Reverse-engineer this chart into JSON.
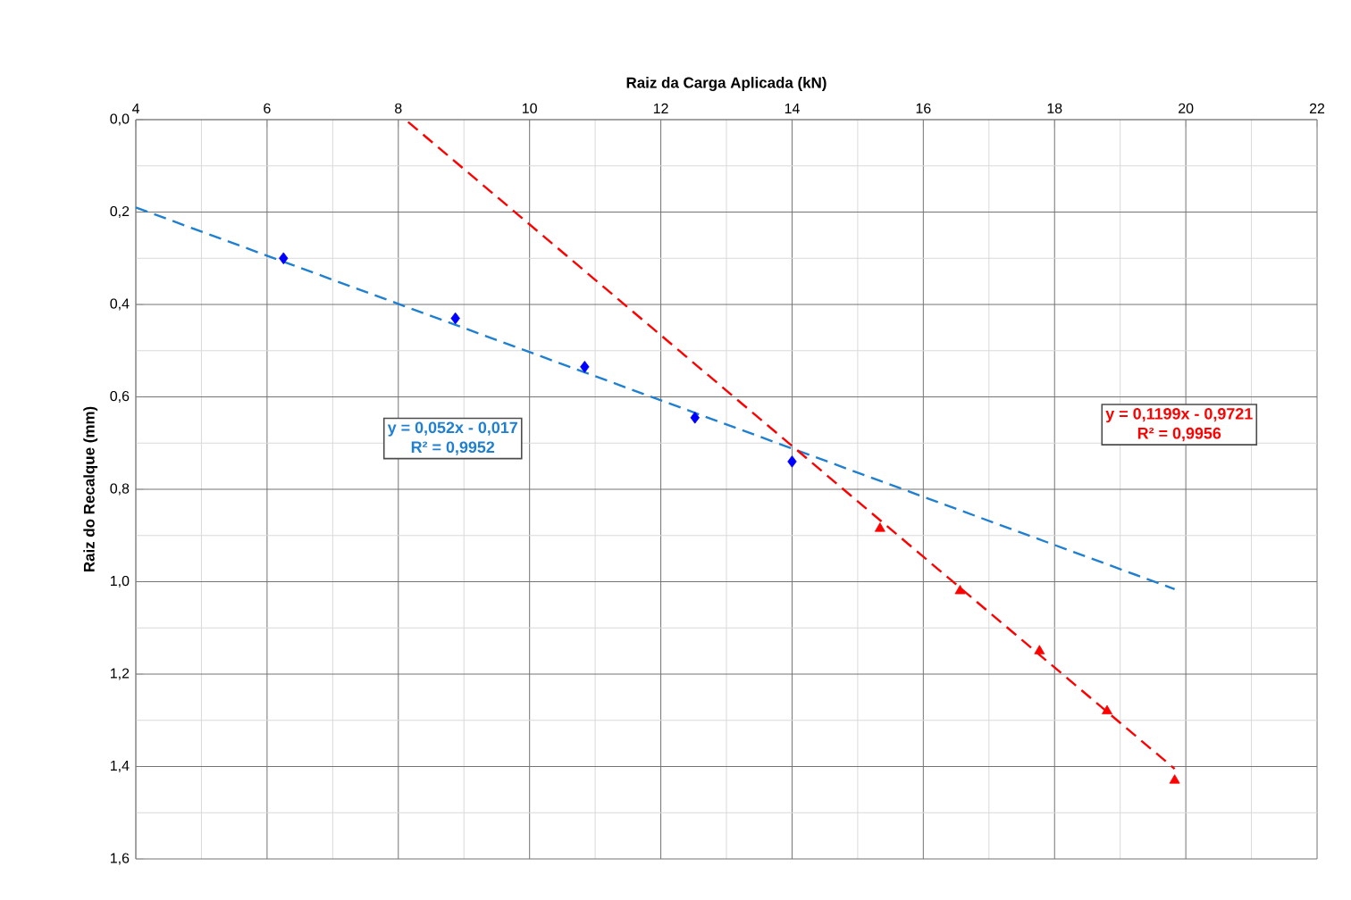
{
  "chart_data": {
    "type": "scatter",
    "xlabel": "Raiz da Carga Aplicada (kN)",
    "ylabel": "Raiz do Recalque (mm)",
    "xlim": [
      4,
      22
    ],
    "ylim": [
      1.6,
      0
    ],
    "xticks": [
      4,
      6,
      8,
      10,
      12,
      14,
      16,
      18,
      20,
      22
    ],
    "yticks": [
      {
        "value": 0,
        "label": "0,0"
      },
      {
        "value": 0.2,
        "label": "0,2"
      },
      {
        "value": 0.4,
        "label": "0,4"
      },
      {
        "value": 0.6,
        "label": "0,6"
      },
      {
        "value": 0.8,
        "label": "0,8"
      },
      {
        "value": 1.0,
        "label": "1,0"
      },
      {
        "value": 1.2,
        "label": "1,2"
      },
      {
        "value": 1.4,
        "label": "1,4"
      },
      {
        "value": 1.6,
        "label": "1,6"
      }
    ],
    "grid": true,
    "series": [
      {
        "color": "#0000ff",
        "marker": "diamond",
        "x": [
          6.25,
          8.87,
          10.84,
          12.52,
          14.0
        ],
        "values": [
          0.3,
          0.43,
          0.535,
          0.645,
          0.74
        ]
      },
      {
        "color": "#ff0000",
        "marker": "triangle",
        "x": [
          15.34,
          16.56,
          17.77,
          18.8,
          19.83
        ],
        "values": [
          0.885,
          1.02,
          1.15,
          1.28,
          1.43
        ]
      },
      {
        "type": "line",
        "color": "#1f7fd0",
        "line_style": "dashed",
        "marker": "none",
        "x": [
          4,
          19.83
        ],
        "values": [
          0.19,
          1.016
        ]
      },
      {
        "type": "line",
        "color": "#ff0000",
        "line_style": "dashed",
        "marker": "none",
        "x": [
          8.15,
          19.83
        ],
        "values": [
          0.005,
          1.405
        ]
      }
    ],
    "annotations": [
      "y = 0,052x - 0,017",
      "R² = 0,9952",
      "y = 0,1199x - 0,9721",
      "R² = 0,9956"
    ]
  }
}
